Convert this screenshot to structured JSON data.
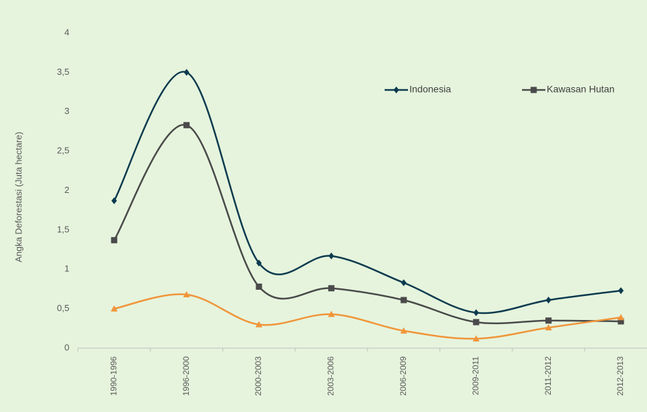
{
  "chart_data": {
    "type": "line",
    "y_label": "Angka Deforestasi (Juta hectare)",
    "categories": [
      "1990-1996",
      "1996-2000",
      "2000-2003",
      "2003-2006",
      "2006-2009",
      "2009-2011",
      "2011-2012",
      "2012-2013"
    ],
    "series": [
      {
        "name": "Indonesia",
        "color": "#0d3b4f",
        "marker": "diamond",
        "values": [
          1.87,
          3.5,
          1.08,
          1.17,
          0.83,
          0.45,
          0.61,
          0.73
        ]
      },
      {
        "name": "Kawasan Hutan",
        "color": "#4a4a4a",
        "marker": "square",
        "values": [
          1.37,
          2.83,
          0.78,
          0.76,
          0.61,
          0.33,
          0.35,
          0.34
        ]
      },
      {
        "color": "#f0953a",
        "marker": "triangle",
        "values": [
          0.5,
          0.68,
          0.3,
          0.43,
          0.22,
          0.12,
          0.26,
          0.39
        ]
      }
    ],
    "ylim": [
      0,
      4
    ],
    "yticks": [
      0,
      {
        "value": 0.5,
        "label": "0,5"
      },
      1,
      {
        "value": 1.5,
        "label": "1,5"
      },
      2,
      {
        "value": 2.5,
        "label": "2,5"
      },
      3,
      {
        "value": 3.5,
        "label": "3,5"
      },
      4
    ],
    "smooth": true,
    "grid": false
  }
}
